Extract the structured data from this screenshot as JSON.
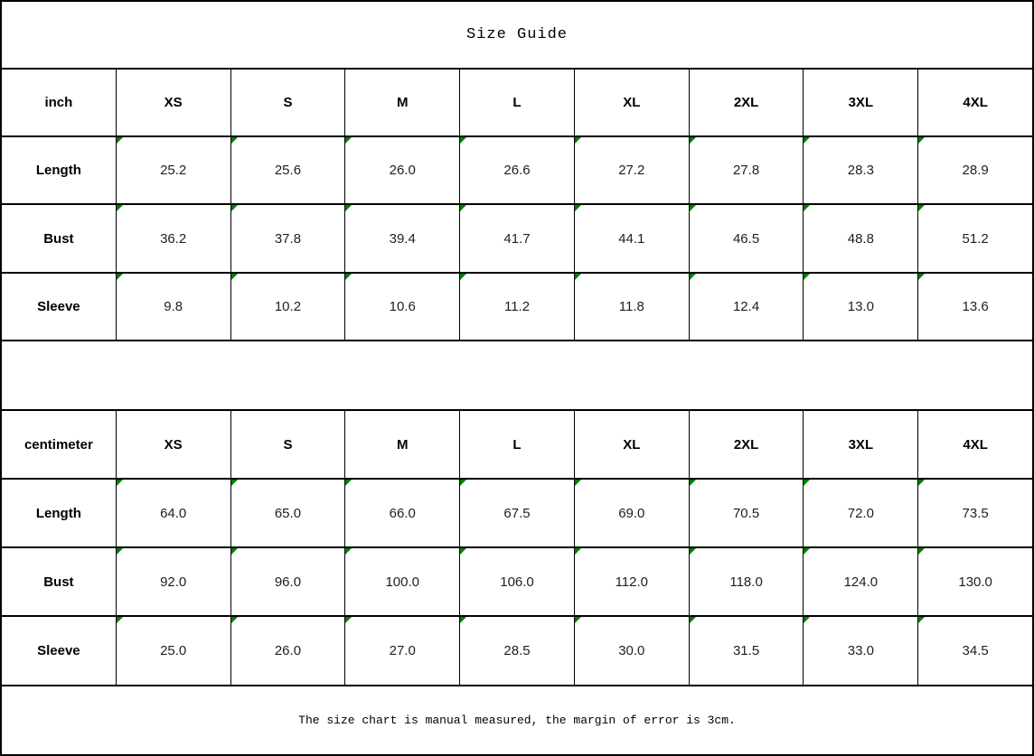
{
  "colors": {
    "flag_green": "#008000",
    "border": "#000000",
    "background": "#ffffff",
    "text": "#000000"
  },
  "chart_data": {
    "type": "table",
    "title": "Size Guide",
    "note": "The size chart is manual measured, the margin of error is 3cm.",
    "tables": [
      {
        "unit_label": "inch",
        "columns": [
          "XS",
          "S",
          "M",
          "L",
          "XL",
          "2XL",
          "3XL",
          "4XL"
        ],
        "rows": [
          {
            "label": "Length",
            "values": [
              "25.2",
              "25.6",
              "26.0",
              "26.6",
              "27.2",
              "27.8",
              "28.3",
              "28.9"
            ]
          },
          {
            "label": "Bust",
            "values": [
              "36.2",
              "37.8",
              "39.4",
              "41.7",
              "44.1",
              "46.5",
              "48.8",
              "51.2"
            ]
          },
          {
            "label": "Sleeve",
            "values": [
              "9.8",
              "10.2",
              "10.6",
              "11.2",
              "11.8",
              "12.4",
              "13.0",
              "13.6"
            ]
          }
        ]
      },
      {
        "unit_label": "centimeter",
        "columns": [
          "XS",
          "S",
          "M",
          "L",
          "XL",
          "2XL",
          "3XL",
          "4XL"
        ],
        "rows": [
          {
            "label": "Length",
            "values": [
              "64.0",
              "65.0",
              "66.0",
              "67.5",
              "69.0",
              "70.5",
              "72.0",
              "73.5"
            ]
          },
          {
            "label": "Bust",
            "values": [
              "92.0",
              "96.0",
              "100.0",
              "106.0",
              "112.0",
              "118.0",
              "124.0",
              "130.0"
            ]
          },
          {
            "label": "Sleeve",
            "values": [
              "25.0",
              "26.0",
              "27.0",
              "28.5",
              "30.0",
              "31.5",
              "33.0",
              "34.5"
            ]
          }
        ]
      }
    ]
  }
}
